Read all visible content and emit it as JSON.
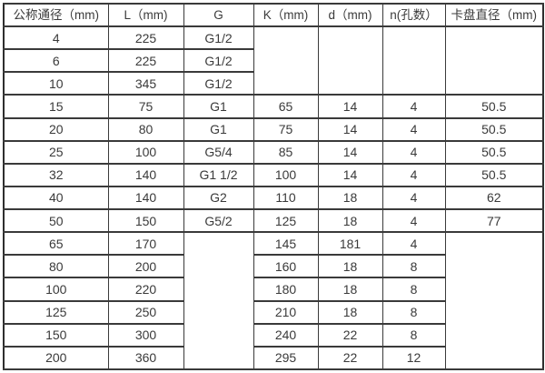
{
  "colors": {
    "border": "#3a3a3a",
    "text": "#3a3a3a",
    "background": "#ffffff"
  },
  "table": {
    "columns": [
      "公称通径（mm)",
      "L（mm)",
      "G",
      "K（mm)",
      "d（mm)",
      "n(孔数）",
      "卡盘直径（mm)"
    ],
    "rows": [
      {
        "cells": [
          {
            "v": "4"
          },
          {
            "v": "225"
          },
          {
            "v": "G1/2"
          },
          {
            "v": "",
            "rs": 3
          },
          {
            "v": "",
            "rs": 3
          },
          {
            "v": "",
            "rs": 3
          },
          {
            "v": "",
            "rs": 3
          }
        ]
      },
      {
        "cells": [
          {
            "v": "6"
          },
          {
            "v": "225"
          },
          {
            "v": "G1/2"
          }
        ]
      },
      {
        "cells": [
          {
            "v": "10"
          },
          {
            "v": "345"
          },
          {
            "v": "G1/2"
          }
        ]
      },
      {
        "cells": [
          {
            "v": "15"
          },
          {
            "v": "75"
          },
          {
            "v": "G1"
          },
          {
            "v": "65"
          },
          {
            "v": "14"
          },
          {
            "v": "4"
          },
          {
            "v": "50.5"
          }
        ]
      },
      {
        "cells": [
          {
            "v": "20"
          },
          {
            "v": "80"
          },
          {
            "v": "G1"
          },
          {
            "v": "75"
          },
          {
            "v": "14"
          },
          {
            "v": "4"
          },
          {
            "v": "50.5"
          }
        ]
      },
      {
        "cells": [
          {
            "v": "25"
          },
          {
            "v": "100"
          },
          {
            "v": "G5/4"
          },
          {
            "v": "85"
          },
          {
            "v": "14"
          },
          {
            "v": "4"
          },
          {
            "v": "50.5"
          }
        ]
      },
      {
        "cells": [
          {
            "v": "32"
          },
          {
            "v": "140"
          },
          {
            "v": "G1 1/2"
          },
          {
            "v": "100"
          },
          {
            "v": "14"
          },
          {
            "v": "4"
          },
          {
            "v": "50.5"
          }
        ]
      },
      {
        "cells": [
          {
            "v": "40"
          },
          {
            "v": "140"
          },
          {
            "v": "G2"
          },
          {
            "v": "110"
          },
          {
            "v": "18"
          },
          {
            "v": "4"
          },
          {
            "v": "62"
          }
        ]
      },
      {
        "cells": [
          {
            "v": "50"
          },
          {
            "v": "150"
          },
          {
            "v": "G5/2"
          },
          {
            "v": "125"
          },
          {
            "v": "18"
          },
          {
            "v": "4"
          },
          {
            "v": "77"
          }
        ]
      },
      {
        "cells": [
          {
            "v": "65"
          },
          {
            "v": "170"
          },
          {
            "v": "",
            "rs": 6
          },
          {
            "v": "145"
          },
          {
            "v": "181"
          },
          {
            "v": "4"
          },
          {
            "v": "",
            "rs": 6
          }
        ]
      },
      {
        "cells": [
          {
            "v": "80"
          },
          {
            "v": "200"
          },
          {
            "v": "160"
          },
          {
            "v": "18"
          },
          {
            "v": "8"
          }
        ]
      },
      {
        "cells": [
          {
            "v": "100"
          },
          {
            "v": "220"
          },
          {
            "v": "180"
          },
          {
            "v": "18"
          },
          {
            "v": "8"
          }
        ]
      },
      {
        "cells": [
          {
            "v": "125"
          },
          {
            "v": "250"
          },
          {
            "v": "210"
          },
          {
            "v": "18"
          },
          {
            "v": "8"
          }
        ]
      },
      {
        "cells": [
          {
            "v": "150"
          },
          {
            "v": "300"
          },
          {
            "v": "240"
          },
          {
            "v": "22"
          },
          {
            "v": "8"
          }
        ]
      },
      {
        "cells": [
          {
            "v": "200"
          },
          {
            "v": "360"
          },
          {
            "v": "295"
          },
          {
            "v": "22"
          },
          {
            "v": "12"
          }
        ]
      }
    ]
  }
}
